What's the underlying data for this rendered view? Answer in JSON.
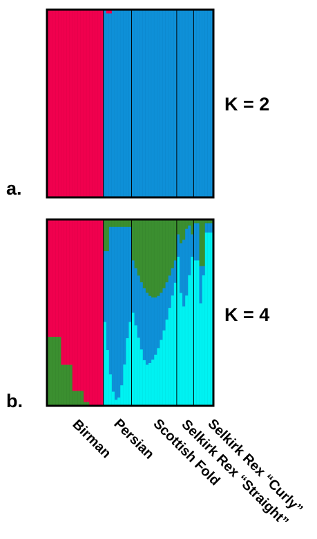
{
  "figure": {
    "panel_a_letter": "a.",
    "panel_b_letter": "b.",
    "k2_label": "K = 2",
    "k4_label": "K = 4"
  },
  "chart_data": [
    {
      "type": "bar",
      "stacked": true,
      "k_label": "K = 2",
      "panel": "a.",
      "ylim": [
        0,
        1
      ],
      "populations": [
        "Birman",
        "Persian",
        "Scottish Fold",
        "Selkirk Rex “Straight”",
        "Selkirk Rex “Curly”"
      ],
      "population_sizes": [
        20,
        10,
        16,
        6,
        7
      ],
      "cluster_colors": [
        "#f0004e",
        "#0e90d8"
      ],
      "population_means": [
        [
          1.0,
          0.0
        ],
        [
          0.01,
          0.99
        ],
        [
          0.0,
          1.0
        ],
        [
          0.0,
          1.0
        ],
        [
          0.0,
          1.0
        ]
      ]
    },
    {
      "type": "bar",
      "stacked": true,
      "k_label": "K = 4",
      "panel": "b.",
      "ylim": [
        0,
        1
      ],
      "populations": [
        "Birman",
        "Persian",
        "Scottish Fold",
        "Selkirk Rex “Straight”",
        "Selkirk Rex “Curly”"
      ],
      "population_sizes": [
        20,
        10,
        16,
        6,
        7
      ],
      "cluster_colors": [
        "#f0004e",
        "#3b8f30",
        "#0e90d8",
        "#00f2f2"
      ],
      "population_means": [
        [
          0.78,
          0.22,
          0.0,
          0.0
        ],
        [
          0.0,
          0.05,
          0.75,
          0.2
        ],
        [
          0.0,
          0.29,
          0.38,
          0.33
        ],
        [
          0.0,
          0.1,
          0.3,
          0.6
        ],
        [
          0.0,
          0.03,
          0.18,
          0.79
        ]
      ]
    }
  ]
}
